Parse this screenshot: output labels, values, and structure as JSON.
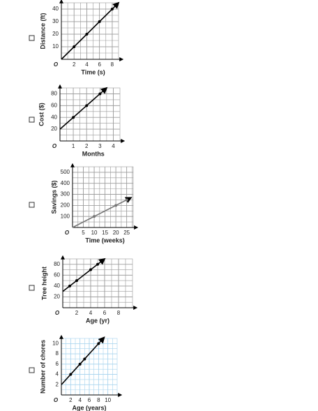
{
  "chart_data": [
    {
      "type": "line",
      "y_label": "Distance (ft)",
      "x_label": "Time (s)",
      "origin_label": "O",
      "x": [
        0,
        2,
        4,
        6,
        8,
        9
      ],
      "values": [
        0,
        10,
        20,
        30,
        40,
        45
      ],
      "color": "#000000",
      "xlim": [
        0,
        9
      ],
      "ylim": [
        0,
        45
      ],
      "xticks": [
        2,
        4,
        6,
        8
      ],
      "yticks": [
        10,
        20,
        30,
        40
      ],
      "grid": true,
      "grid_color": "#9a9a9a"
    },
    {
      "type": "line",
      "y_label": "Cost ($)",
      "x_label": "Months",
      "origin_label": "O",
      "x": [
        0,
        1,
        2,
        3,
        3.5
      ],
      "values": [
        20,
        40,
        60,
        80,
        90
      ],
      "color": "#000000",
      "xlim": [
        0,
        4.5
      ],
      "ylim": [
        0,
        90
      ],
      "xticks": [
        1,
        2,
        3,
        4
      ],
      "yticks": [
        20,
        40,
        60,
        80
      ],
      "grid": true,
      "grid_color": "#9a9a9a"
    },
    {
      "type": "line",
      "y_label": "Savings ($)",
      "x_label": "Time (weeks)",
      "origin_label": "O",
      "x": [
        0,
        10,
        20,
        25,
        27
      ],
      "values": [
        0,
        100,
        200,
        250,
        270
      ],
      "color": "#777777",
      "xlim": [
        0,
        28
      ],
      "ylim": [
        0,
        550
      ],
      "xticks": [
        5,
        10,
        15,
        20,
        25
      ],
      "yticks": [
        100,
        200,
        300,
        400,
        500
      ],
      "grid": true,
      "grid_color": "#9a9a9a"
    },
    {
      "type": "line",
      "y_label": "Tree height",
      "x_label": "Age (yr)",
      "origin_label": "O",
      "x": [
        0,
        1,
        2,
        4,
        5,
        6
      ],
      "values": [
        30,
        40,
        50,
        70,
        80,
        90
      ],
      "color": "#000000",
      "xlim": [
        0,
        10
      ],
      "ylim": [
        0,
        90
      ],
      "xticks": [
        2,
        4,
        6,
        8
      ],
      "yticks": [
        20,
        40,
        60,
        80
      ],
      "grid": true,
      "grid_color": "#9a9a9a"
    },
    {
      "type": "line",
      "y_label": "Number of chores",
      "x_label": "Age (years)",
      "origin_label": "O",
      "x": [
        0,
        2,
        4,
        5,
        8,
        9.2
      ],
      "values": [
        2,
        4,
        6,
        7,
        10,
        11.2
      ],
      "color": "#000000",
      "xlim": [
        0,
        12
      ],
      "ylim": [
        0,
        11
      ],
      "xticks": [
        2,
        4,
        6,
        8,
        10
      ],
      "yticks": [
        2,
        4,
        6,
        8,
        10
      ],
      "grid": true,
      "grid_color": "#a8d4ee"
    }
  ]
}
